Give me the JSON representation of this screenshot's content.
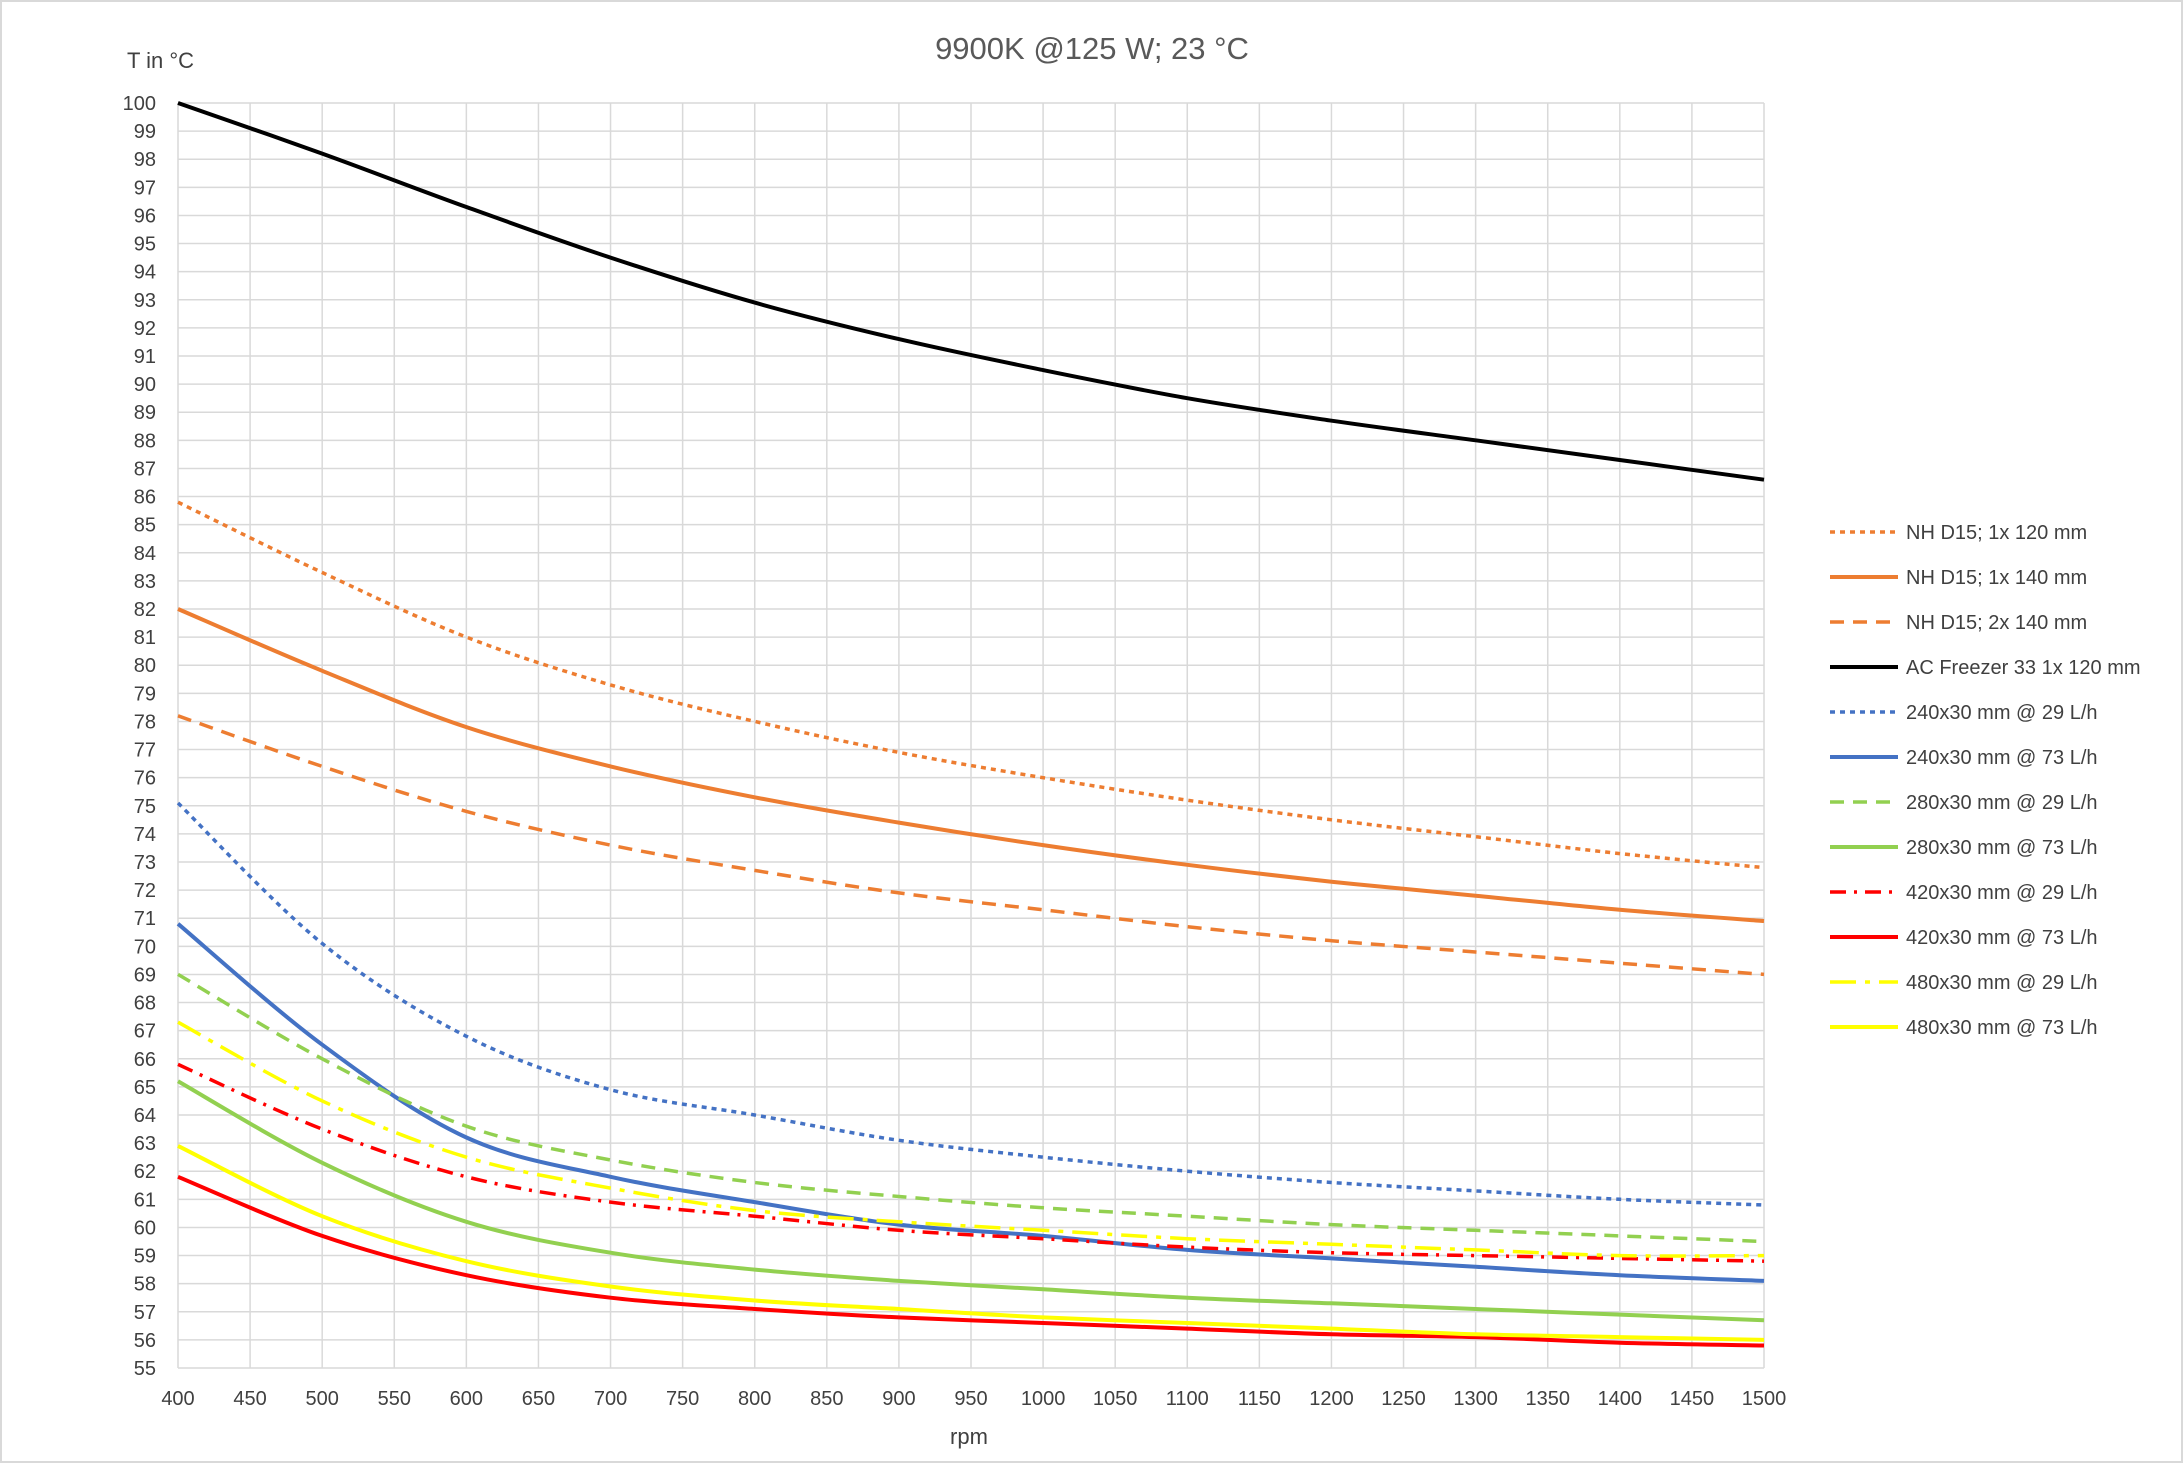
{
  "chart_data": {
    "type": "line",
    "title": "9900K @125 W; 23 °C",
    "xlabel": "rpm",
    "ylabel": "T in °C",
    "xlim": [
      400,
      1500
    ],
    "ylim": [
      55,
      100
    ],
    "x_ticks": [
      "400",
      "450",
      "500",
      "550",
      "600",
      "650",
      "700",
      "750",
      "800",
      "850",
      "900",
      "950",
      "1000",
      "1050",
      "1100",
      "1150",
      "1200",
      "1250",
      "1300",
      "1350",
      "1400",
      "1450",
      "1500"
    ],
    "y_ticks": [
      "55",
      "56",
      "57",
      "58",
      "59",
      "60",
      "61",
      "62",
      "63",
      "64",
      "65",
      "66",
      "67",
      "68",
      "69",
      "70",
      "71",
      "72",
      "73",
      "74",
      "75",
      "76",
      "77",
      "78",
      "79",
      "80",
      "81",
      "82",
      "83",
      "84",
      "85",
      "86",
      "87",
      "88",
      "89",
      "90",
      "91",
      "92",
      "93",
      "94",
      "95",
      "96",
      "97",
      "98",
      "99",
      "100"
    ],
    "grid": true,
    "legend_position": "right",
    "x": [
      400,
      500,
      600,
      700,
      800,
      900,
      1000,
      1100,
      1200,
      1300,
      1400,
      1500
    ],
    "series": [
      {
        "name": "NH D15; 1x 120 mm",
        "color": "#ED7D31",
        "dash": "dot",
        "values": [
          85.8,
          83.3,
          81.0,
          79.3,
          78.0,
          76.9,
          76.0,
          75.2,
          74.5,
          73.9,
          73.3,
          72.8
        ]
      },
      {
        "name": "NH D15; 1x 140 mm",
        "color": "#ED7D31",
        "dash": "solid",
        "values": [
          82.0,
          79.8,
          77.8,
          76.4,
          75.3,
          74.4,
          73.6,
          72.9,
          72.3,
          71.8,
          71.3,
          70.9
        ]
      },
      {
        "name": "NH D15; 2x 140 mm",
        "color": "#ED7D31",
        "dash": "dash",
        "values": [
          78.2,
          76.4,
          74.8,
          73.6,
          72.7,
          71.9,
          71.3,
          70.7,
          70.2,
          69.8,
          69.4,
          69.0
        ]
      },
      {
        "name": "AC Freezer 33 1x 120 mm",
        "color": "#000000",
        "dash": "solid",
        "values": [
          100.0,
          98.2,
          96.3,
          94.5,
          92.9,
          91.6,
          90.5,
          89.5,
          88.7,
          88.0,
          87.3,
          86.6
        ]
      },
      {
        "name": "240x30 mm @ 29 L/h",
        "color": "#4472C4",
        "dash": "dot",
        "values": [
          75.1,
          70.1,
          66.8,
          64.9,
          64.0,
          63.1,
          62.5,
          62.0,
          61.6,
          61.3,
          61.0,
          60.8
        ]
      },
      {
        "name": "240x30 mm @ 73 L/h",
        "color": "#4472C4",
        "dash": "solid",
        "values": [
          70.8,
          66.5,
          63.2,
          61.8,
          60.9,
          60.1,
          59.7,
          59.2,
          58.9,
          58.6,
          58.3,
          58.1
        ]
      },
      {
        "name": "280x30 mm @ 29 L/h",
        "color": "#92D050",
        "dash": "dash",
        "values": [
          69.0,
          66.0,
          63.6,
          62.4,
          61.6,
          61.1,
          60.7,
          60.4,
          60.1,
          59.9,
          59.7,
          59.5
        ]
      },
      {
        "name": "280x30 mm @ 73 L/h",
        "color": "#92D050",
        "dash": "solid",
        "values": [
          65.2,
          62.3,
          60.2,
          59.1,
          58.5,
          58.1,
          57.8,
          57.5,
          57.3,
          57.1,
          56.9,
          56.7
        ]
      },
      {
        "name": "420x30 mm @ 29 L/h",
        "color": "#FF0000",
        "dash": "dashdot",
        "values": [
          65.8,
          63.5,
          61.8,
          60.9,
          60.4,
          59.9,
          59.6,
          59.3,
          59.1,
          59.0,
          58.9,
          58.8
        ]
      },
      {
        "name": "420x30 mm @ 73 L/h",
        "color": "#FF0000",
        "dash": "solid",
        "values": [
          61.8,
          59.7,
          58.3,
          57.5,
          57.1,
          56.8,
          56.6,
          56.4,
          56.2,
          56.1,
          55.9,
          55.8
        ]
      },
      {
        "name": "480x30 mm @ 29 L/h",
        "color": "#FFFF00",
        "dash": "longdashdot",
        "values": [
          67.3,
          64.5,
          62.5,
          61.4,
          60.6,
          60.2,
          59.9,
          59.6,
          59.4,
          59.2,
          59.0,
          59.0
        ]
      },
      {
        "name": "480x30 mm @ 73 L/h",
        "color": "#FFFF00",
        "dash": "solid",
        "values": [
          62.9,
          60.4,
          58.8,
          57.9,
          57.4,
          57.1,
          56.8,
          56.6,
          56.4,
          56.2,
          56.1,
          56.0
        ]
      }
    ]
  }
}
